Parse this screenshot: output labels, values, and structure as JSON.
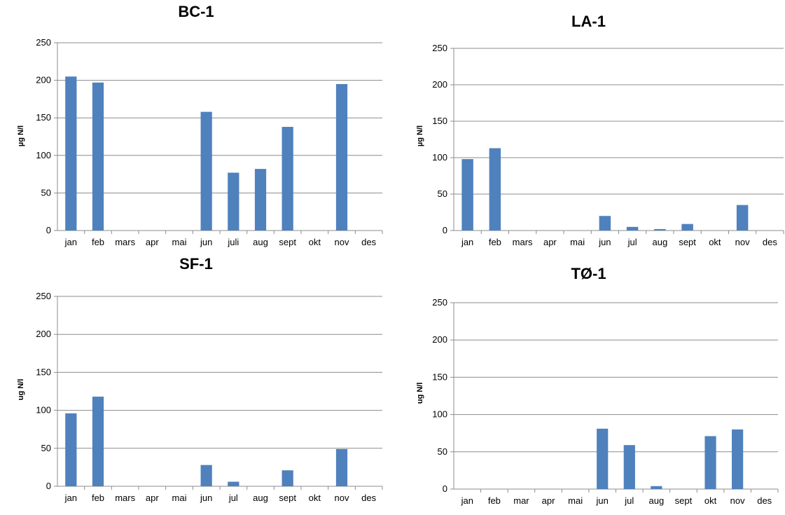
{
  "chart_data": [
    {
      "type": "bar",
      "title": "BC-1",
      "ylabel": "µg N/l",
      "ylim": [
        0,
        250
      ],
      "yticks": [
        0,
        50,
        100,
        150,
        200,
        250
      ],
      "grid": true,
      "color": "#4f81bd",
      "categories": [
        "jan",
        "feb",
        "mars",
        "apr",
        "mai",
        "jun",
        "juli",
        "aug",
        "sept",
        "okt",
        "nov",
        "des"
      ],
      "values": [
        205,
        197,
        0,
        0,
        0,
        158,
        77,
        82,
        138,
        0,
        195,
        0
      ]
    },
    {
      "type": "bar",
      "title": "LA-1",
      "ylabel": "µg N/l",
      "ylim": [
        0,
        250
      ],
      "yticks": [
        0,
        50,
        100,
        150,
        200,
        250
      ],
      "grid": true,
      "color": "#4f81bd",
      "categories": [
        "jan",
        "feb",
        "mars",
        "apr",
        "mai",
        "jun",
        "jul",
        "aug",
        "sept",
        "okt",
        "nov",
        "des"
      ],
      "values": [
        98,
        113,
        0,
        0,
        0,
        20,
        5,
        2,
        9,
        0,
        35,
        0
      ]
    },
    {
      "type": "bar",
      "title": "SF-1",
      "ylabel": "ug N/l",
      "ylim": [
        0,
        250
      ],
      "yticks": [
        0,
        50,
        100,
        150,
        200,
        250
      ],
      "grid": true,
      "color": "#4f81bd",
      "categories": [
        "jan",
        "feb",
        "mars",
        "apr",
        "mai",
        "jun",
        "jul",
        "aug",
        "sept",
        "okt",
        "nov",
        "des"
      ],
      "values": [
        96,
        118,
        0,
        0,
        0,
        28,
        6,
        0,
        21,
        0,
        49,
        0
      ]
    },
    {
      "type": "bar",
      "title": "TØ-1",
      "ylabel": "ug N/l",
      "ylim": [
        0,
        250
      ],
      "yticks": [
        0,
        50,
        100,
        150,
        200,
        250
      ],
      "grid": true,
      "color": "#4f81bd",
      "categories": [
        "jan",
        "feb",
        "mar",
        "apr",
        "mai",
        "jun",
        "jul",
        "aug",
        "sept",
        "okt",
        "nov",
        "des"
      ],
      "values": [
        0,
        0,
        0,
        0,
        0,
        81,
        59,
        4,
        0,
        71,
        80,
        0
      ]
    }
  ]
}
